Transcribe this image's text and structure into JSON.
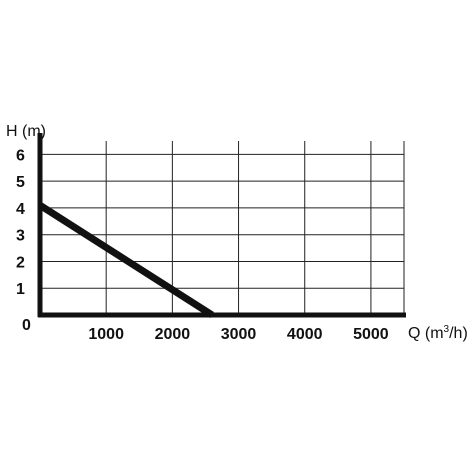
{
  "chart_data": {
    "type": "line",
    "title": "",
    "ylabel": "H (m)",
    "xlabel_prefix": "Q (m",
    "xlabel_sup": "3",
    "xlabel_suffix": "/h)",
    "xlim": [
      0,
      5500
    ],
    "ylim": [
      0,
      6.5
    ],
    "x_ticks": [
      1000,
      2000,
      3000,
      4000,
      5000
    ],
    "y_ticks": [
      1,
      2,
      3,
      4,
      5,
      6
    ],
    "origin_label": "0",
    "grid": true,
    "series": [
      {
        "x": [
          0,
          2600
        ],
        "y": [
          4.1,
          0
        ]
      }
    ]
  }
}
